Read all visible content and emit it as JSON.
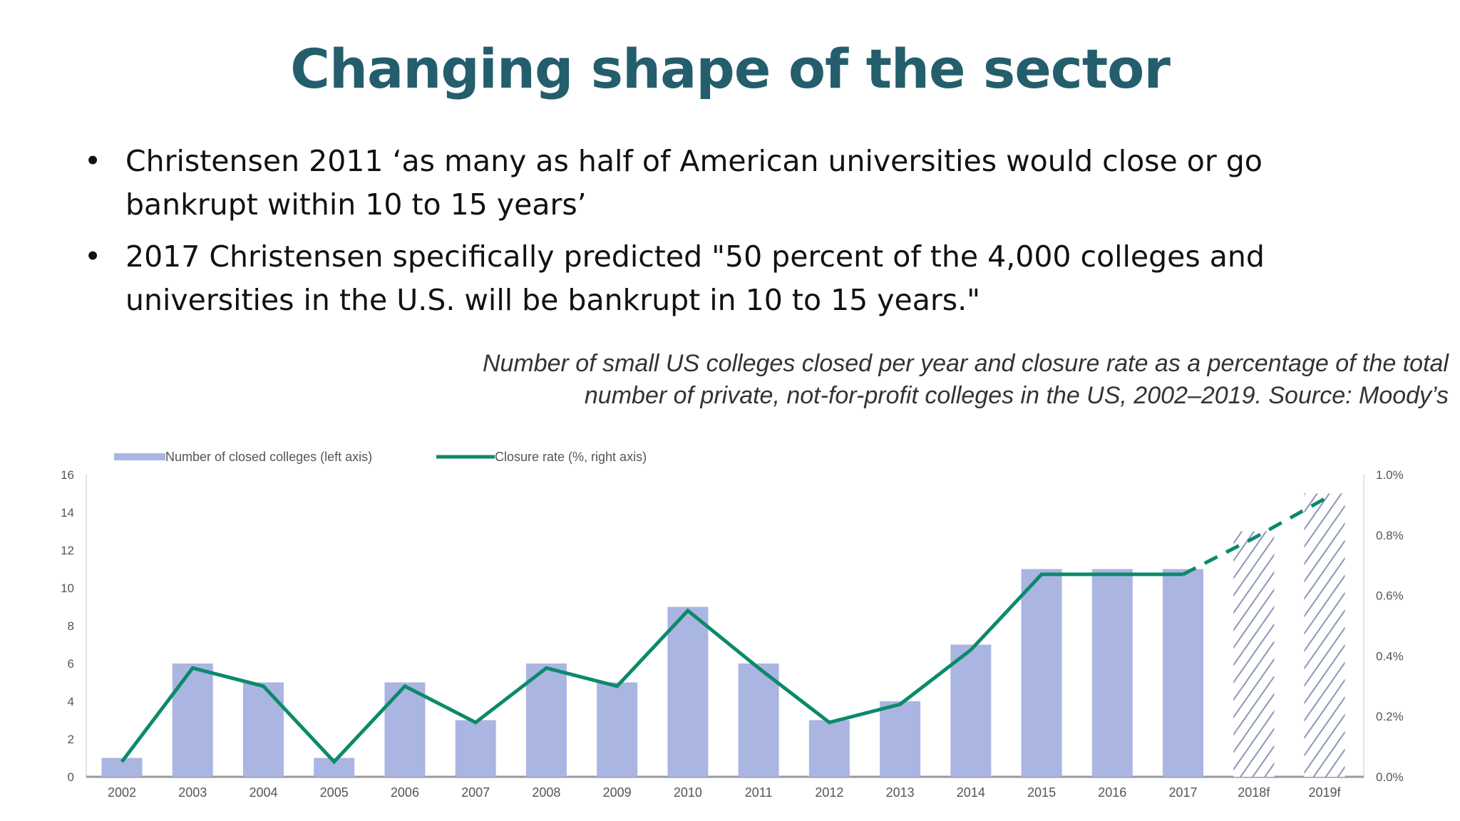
{
  "title": "Changing shape of the sector",
  "bullets": [
    {
      "icon": "bullet-dot",
      "symbol": "•",
      "text": "Christensen 2011 ‘as many as half of American universities would close or go bankrupt within 10 to 15 years’"
    },
    {
      "icon": "bullet-dot",
      "symbol": "•",
      "text": "2017  Christensen specifically predicted  \"50 percent of the 4,000 colleges and universities in the U.S. will be bankrupt in 10 to 15 years.\""
    }
  ],
  "caption": "Number of small US colleges closed per year and closure rate as a percentage of the total number of private, not-for-profit colleges in the US, 2002–2019. Source: Moody’s",
  "colors": {
    "title": "#245e6c",
    "bars": "#abb5e2",
    "line": "#0b8a6b",
    "hatch": "#8c96b8"
  },
  "chart_data": {
    "type": "bar+line",
    "categories": [
      "2002",
      "2003",
      "2004",
      "2005",
      "2006",
      "2007",
      "2008",
      "2009",
      "2010",
      "2011",
      "2012",
      "2013",
      "2014",
      "2015",
      "2016",
      "2017",
      "2018f",
      "2019f"
    ],
    "series": [
      {
        "name": "Number of closed colleges (left axis)",
        "type": "bar",
        "axis": "left",
        "values": [
          1,
          6,
          5,
          1,
          5,
          3,
          6,
          5,
          9,
          6,
          3,
          4,
          7,
          11,
          11,
          11,
          13,
          15
        ],
        "forecast_from": "2018f",
        "forecast_style": "hatched"
      },
      {
        "name": "Closure rate (%, right axis)",
        "type": "line",
        "axis": "right",
        "values": [
          0.05,
          0.36,
          0.3,
          0.05,
          0.3,
          0.18,
          0.36,
          0.3,
          0.55,
          0.36,
          0.18,
          0.24,
          0.42,
          0.67,
          0.67,
          0.67,
          0.79,
          0.92
        ],
        "forecast_from": "2018f",
        "forecast_style": "dashed"
      }
    ],
    "left_axis": {
      "range": [
        0,
        16
      ],
      "ticks": [
        "0",
        "2",
        "4",
        "6",
        "8",
        "10",
        "12",
        "14",
        "16"
      ]
    },
    "right_axis": {
      "range": [
        0,
        1.0
      ],
      "ticks": [
        "0.0%",
        "0.2%",
        "0.4%",
        "0.6%",
        "0.8%",
        "1.0%"
      ]
    },
    "legend_position": "top-left",
    "grid": false
  }
}
